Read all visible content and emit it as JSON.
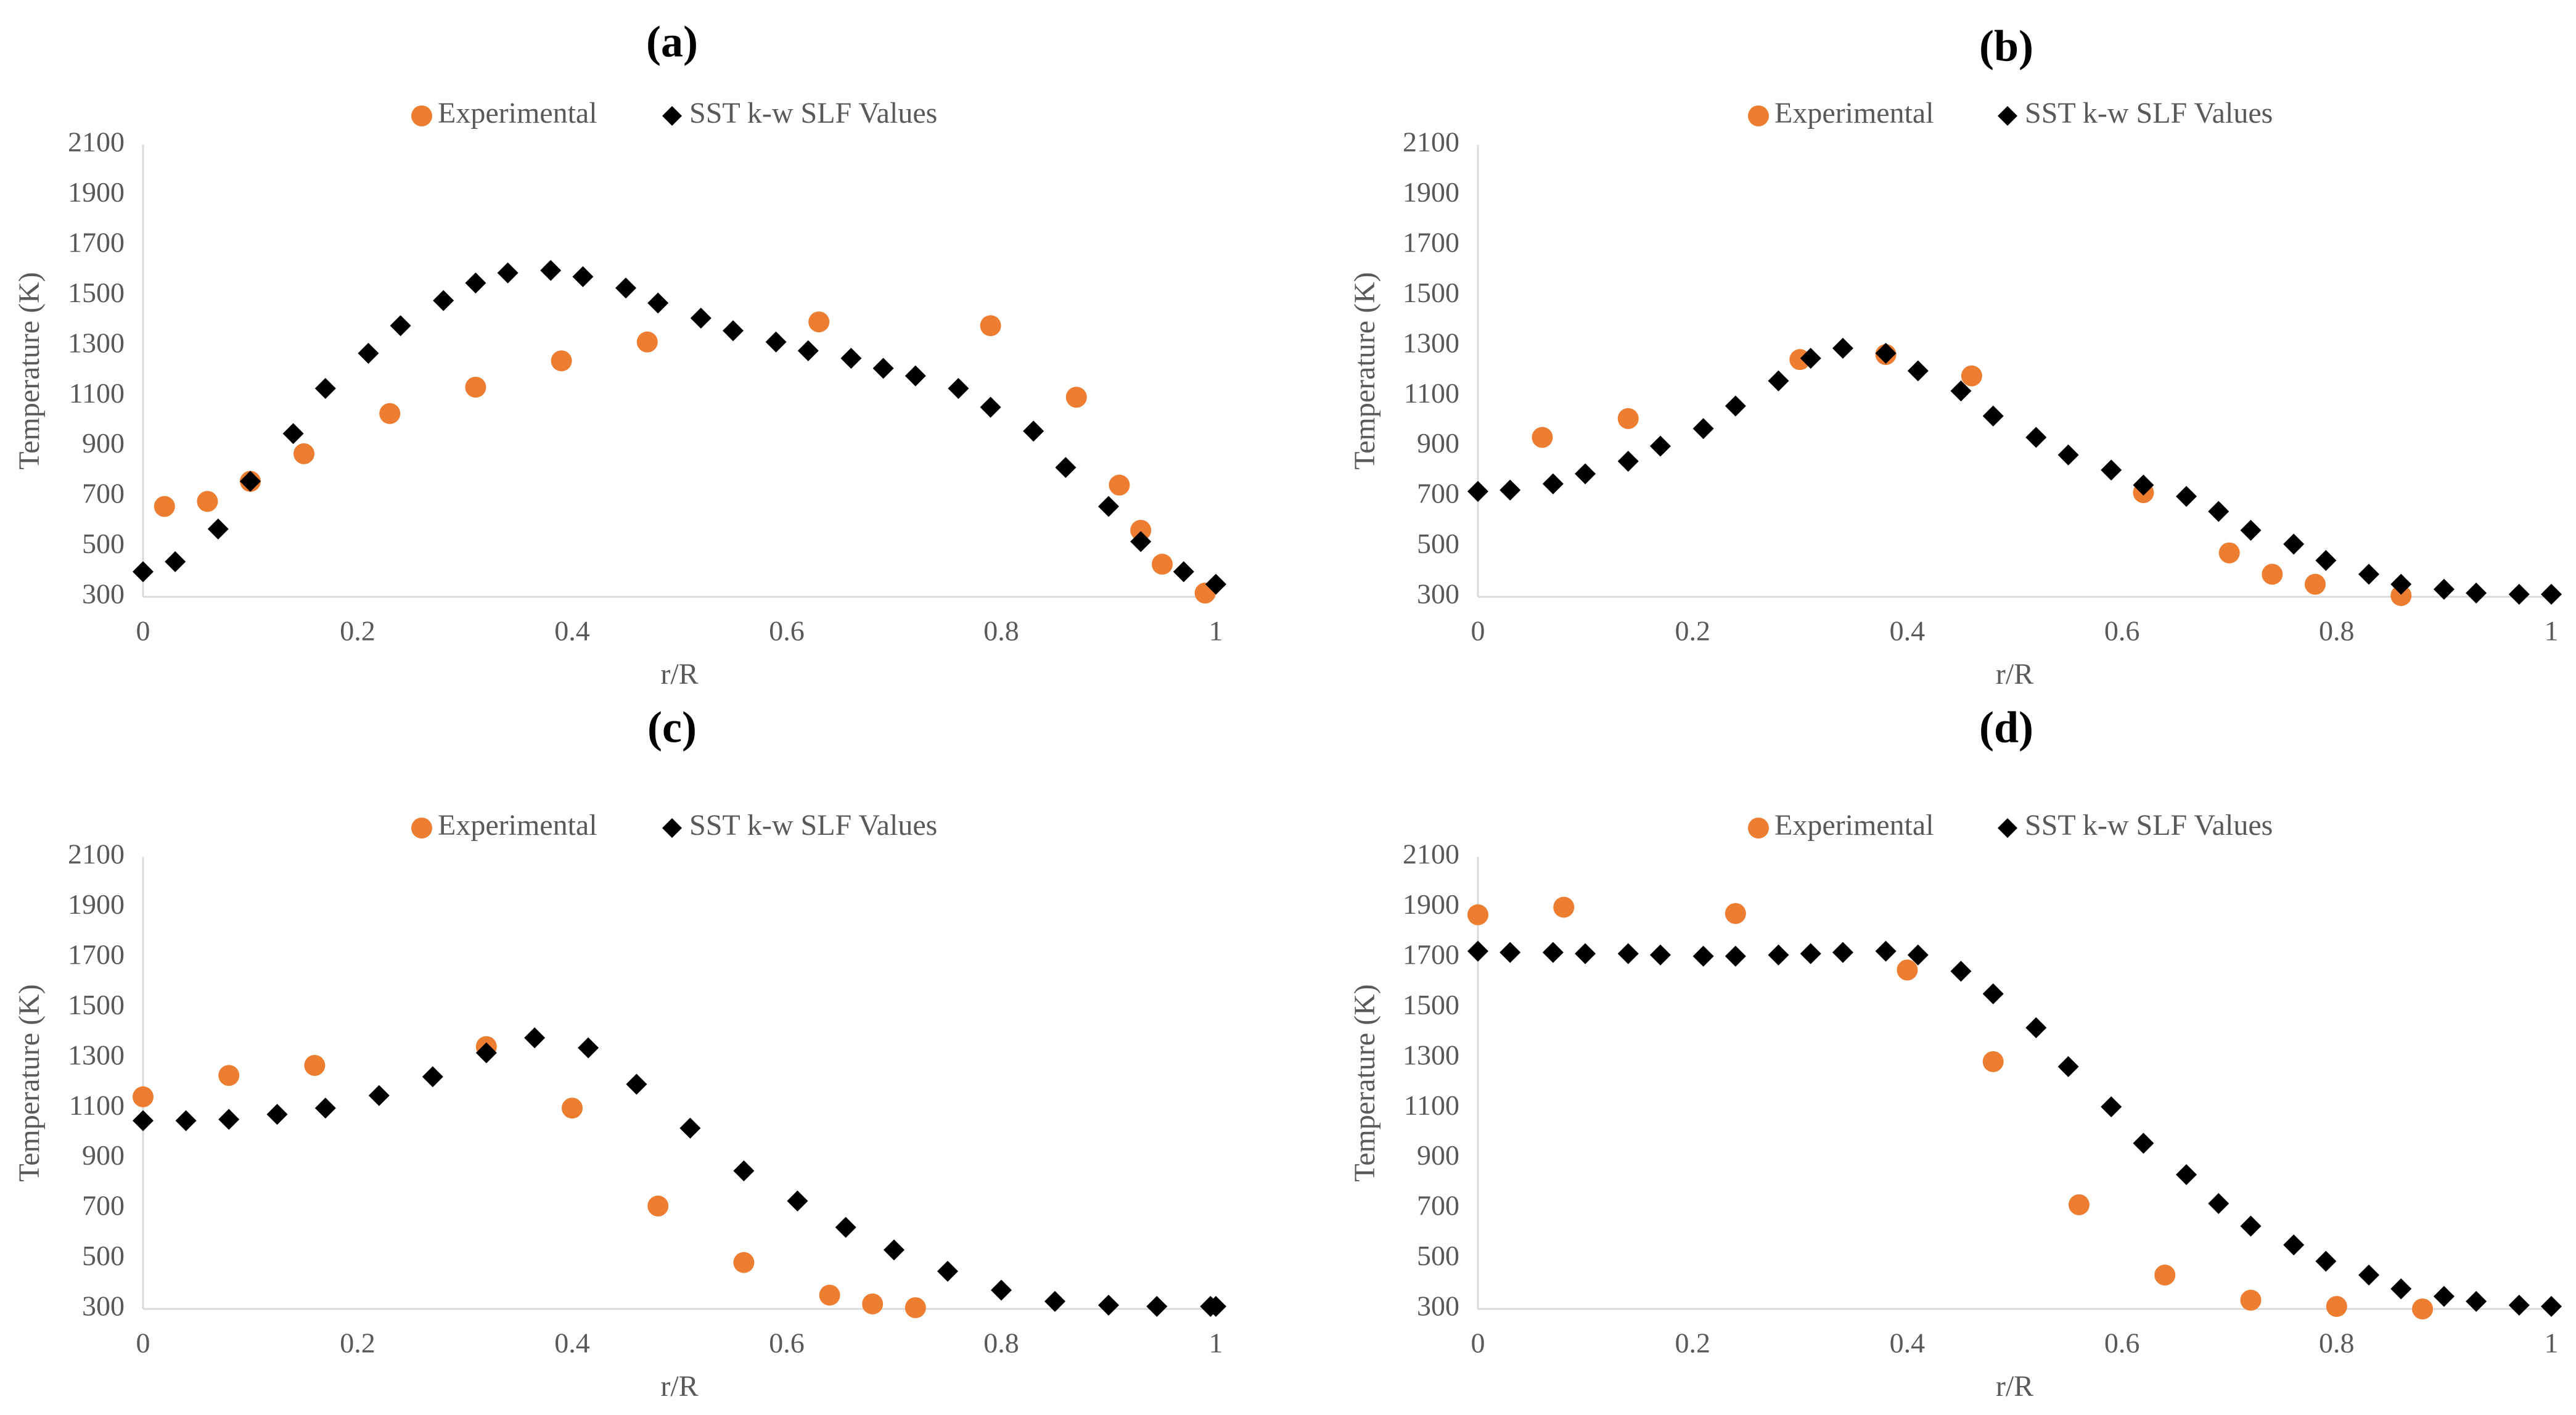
{
  "figure": {
    "colors": {
      "experimental": "#ED7D31",
      "sst": "#000000",
      "axis": "#D9D9D9",
      "text": "#595959"
    },
    "legend_icons": {
      "experimental": "circle-marker",
      "sst": "diamond-marker"
    }
  },
  "chart_data": [
    {
      "panel_label": "(a)",
      "type": "scatter",
      "title": "",
      "xlabel": "r/R",
      "ylabel": "Temperature (K)",
      "xlim": [
        0,
        1
      ],
      "ylim": [
        300,
        2100
      ],
      "x_ticks": [
        "0",
        "0.2",
        "0.4",
        "0.6",
        "0.8",
        "1"
      ],
      "y_ticks": [
        "300",
        "500",
        "700",
        "900",
        "1100",
        "1300",
        "1500",
        "1700",
        "1900",
        "2100"
      ],
      "legend": [
        "Experimental",
        "SST k-w SLF Values"
      ],
      "legend_position": "top-center",
      "series": [
        {
          "name": "Experimental",
          "marker": "circle",
          "x": [
            0.02,
            0.06,
            0.1,
            0.15,
            0.23,
            0.31,
            0.39,
            0.47,
            0.63,
            0.79,
            0.87,
            0.91,
            0.93,
            0.95,
            0.99
          ],
          "y": [
            660,
            680,
            760,
            870,
            1030,
            1135,
            1240,
            1315,
            1395,
            1380,
            1095,
            745,
            565,
            430,
            315
          ]
        },
        {
          "name": "SST k-w SLF Values",
          "marker": "diamond",
          "x": [
            0.0,
            0.03,
            0.07,
            0.1,
            0.14,
            0.17,
            0.21,
            0.24,
            0.28,
            0.31,
            0.34,
            0.38,
            0.41,
            0.45,
            0.48,
            0.52,
            0.55,
            0.59,
            0.62,
            0.66,
            0.69,
            0.72,
            0.76,
            0.79,
            0.83,
            0.86,
            0.9,
            0.93,
            0.97,
            1.0
          ],
          "y": [
            400,
            440,
            570,
            760,
            950,
            1130,
            1270,
            1380,
            1480,
            1550,
            1590,
            1600,
            1575,
            1530,
            1470,
            1410,
            1360,
            1315,
            1280,
            1250,
            1210,
            1180,
            1130,
            1055,
            960,
            815,
            660,
            520,
            400,
            350
          ]
        }
      ]
    },
    {
      "panel_label": "(b)",
      "type": "scatter",
      "title": "",
      "xlabel": "r/R",
      "ylabel": "Temperature (K)",
      "xlim": [
        0,
        1
      ],
      "ylim": [
        300,
        2100
      ],
      "x_ticks": [
        "0",
        "0.2",
        "0.4",
        "0.6",
        "0.8",
        "1"
      ],
      "y_ticks": [
        "300",
        "500",
        "700",
        "900",
        "1100",
        "1300",
        "1500",
        "1700",
        "1900",
        "2100"
      ],
      "legend": [
        "Experimental",
        "SST k-w SLF Values"
      ],
      "legend_position": "top-center",
      "series": [
        {
          "name": "Experimental",
          "marker": "circle",
          "x": [
            0.06,
            0.14,
            0.3,
            0.38,
            0.46,
            0.62,
            0.7,
            0.74,
            0.78,
            0.86
          ],
          "y": [
            935,
            1010,
            1245,
            1265,
            1180,
            715,
            475,
            390,
            350,
            305
          ]
        },
        {
          "name": "SST k-w SLF Values",
          "marker": "diamond",
          "x": [
            0.0,
            0.03,
            0.07,
            0.1,
            0.14,
            0.17,
            0.21,
            0.24,
            0.28,
            0.31,
            0.34,
            0.38,
            0.41,
            0.45,
            0.48,
            0.52,
            0.55,
            0.59,
            0.62,
            0.66,
            0.69,
            0.72,
            0.76,
            0.79,
            0.83,
            0.86,
            0.9,
            0.93,
            0.97,
            1.0
          ],
          "y": [
            720,
            725,
            750,
            790,
            840,
            900,
            970,
            1060,
            1160,
            1250,
            1290,
            1270,
            1200,
            1120,
            1020,
            935,
            865,
            805,
            745,
            700,
            640,
            565,
            510,
            445,
            390,
            350,
            330,
            315,
            310,
            310
          ]
        }
      ]
    },
    {
      "panel_label": "(c)",
      "type": "scatter",
      "title": "",
      "xlabel": "r/R",
      "ylabel": "Temperature (K)",
      "xlim": [
        0,
        1
      ],
      "ylim": [
        300,
        2100
      ],
      "x_ticks": [
        "0",
        "0.2",
        "0.4",
        "0.6",
        "0.8",
        "1"
      ],
      "y_ticks": [
        "300",
        "500",
        "700",
        "900",
        "1100",
        "1300",
        "1500",
        "1700",
        "1900",
        "2100"
      ],
      "legend": [
        "Experimental",
        "SST k-w SLF Values"
      ],
      "legend_position": "top-center",
      "series": [
        {
          "name": "Experimental",
          "marker": "circle",
          "x": [
            0.0,
            0.08,
            0.16,
            0.32,
            0.4,
            0.48,
            0.56,
            0.64,
            0.68,
            0.72
          ],
          "y": [
            1145,
            1230,
            1270,
            1345,
            1100,
            710,
            485,
            355,
            320,
            305
          ]
        },
        {
          "name": "SST k-w SLF Values",
          "marker": "diamond",
          "x": [
            0.0,
            0.04,
            0.08,
            0.125,
            0.17,
            0.22,
            0.27,
            0.32,
            0.365,
            0.415,
            0.46,
            0.51,
            0.56,
            0.61,
            0.655,
            0.7,
            0.75,
            0.8,
            0.85,
            0.9,
            0.945,
            0.995,
            1.0
          ],
          "y": [
            1050,
            1050,
            1055,
            1075,
            1100,
            1150,
            1225,
            1320,
            1380,
            1340,
            1195,
            1020,
            850,
            730,
            625,
            535,
            450,
            375,
            330,
            315,
            310,
            310,
            310
          ]
        }
      ]
    },
    {
      "panel_label": "(d)",
      "type": "scatter",
      "title": "",
      "xlabel": "r/R",
      "ylabel": "Temperature (K)",
      "xlim": [
        0,
        1
      ],
      "ylim": [
        300,
        2100
      ],
      "x_ticks": [
        "0",
        "0.2",
        "0.4",
        "0.6",
        "0.8",
        "1"
      ],
      "y_ticks": [
        "300",
        "500",
        "700",
        "900",
        "1100",
        "1300",
        "1500",
        "1700",
        "1900",
        "2100"
      ],
      "legend": [
        "Experimental",
        "SST k-w SLF Values"
      ],
      "legend_position": "top-center",
      "series": [
        {
          "name": "Experimental",
          "marker": "circle",
          "x": [
            0.0,
            0.08,
            0.24,
            0.4,
            0.48,
            0.56,
            0.64,
            0.72,
            0.8,
            0.88
          ],
          "y": [
            1870,
            1900,
            1875,
            1650,
            1285,
            715,
            435,
            335,
            310,
            300
          ]
        },
        {
          "name": "SST k-w SLF Values",
          "marker": "diamond",
          "x": [
            0.0,
            0.03,
            0.07,
            0.1,
            0.14,
            0.17,
            0.21,
            0.24,
            0.28,
            0.31,
            0.34,
            0.38,
            0.41,
            0.45,
            0.48,
            0.52,
            0.55,
            0.59,
            0.62,
            0.66,
            0.69,
            0.72,
            0.76,
            0.79,
            0.83,
            0.86,
            0.9,
            0.93,
            0.97,
            1.0
          ],
          "y": [
            1725,
            1720,
            1720,
            1715,
            1715,
            1710,
            1705,
            1705,
            1710,
            1715,
            1720,
            1725,
            1710,
            1645,
            1555,
            1420,
            1265,
            1105,
            960,
            835,
            720,
            630,
            555,
            490,
            435,
            380,
            350,
            330,
            315,
            310
          ]
        }
      ]
    }
  ]
}
